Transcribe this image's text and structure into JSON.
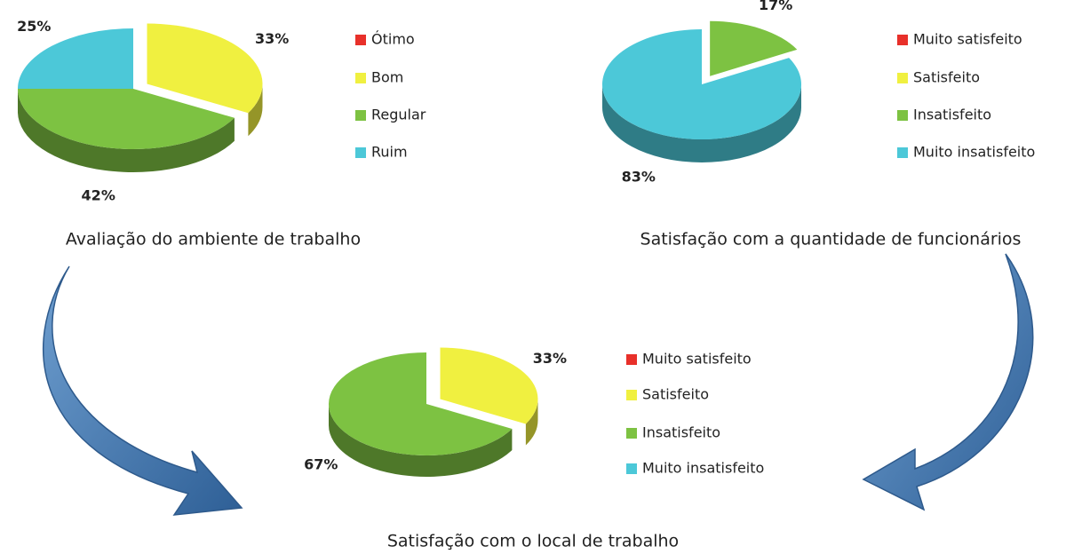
{
  "chart_data": [
    {
      "type": "pie",
      "title": "Avaliação do ambiente de trabalho",
      "categories": [
        "Ótimo",
        "Bom",
        "Regular",
        "Ruim"
      ],
      "values": [
        0,
        33,
        42,
        25
      ],
      "value_labels": [
        null,
        "33%",
        "42%",
        "25%"
      ],
      "colors": [
        "#e8302a",
        "#f0f040",
        "#7dc242",
        "#4cc8d8"
      ]
    },
    {
      "type": "pie",
      "title": "Satisfação com a quantidade de funcionários",
      "categories": [
        "Muito satisfeito",
        "Satisfeito",
        "Insatisfeito",
        "Muito insatisfeito"
      ],
      "values": [
        0,
        0,
        17,
        83
      ],
      "value_labels": [
        null,
        null,
        "17%",
        "83%"
      ],
      "colors": [
        "#e8302a",
        "#f0f040",
        "#7dc242",
        "#4cc8d8"
      ]
    },
    {
      "type": "pie",
      "title": "Satisfação com o local de trabalho",
      "categories": [
        "Muito satisfeito",
        "Satisfeito",
        "Insatisfeito",
        "Muito insatisfeito"
      ],
      "values": [
        0,
        33,
        67,
        0
      ],
      "value_labels": [
        null,
        "33%",
        "67%",
        null
      ],
      "colors": [
        "#e8302a",
        "#f0f040",
        "#7dc242",
        "#4cc8d8"
      ]
    }
  ]
}
